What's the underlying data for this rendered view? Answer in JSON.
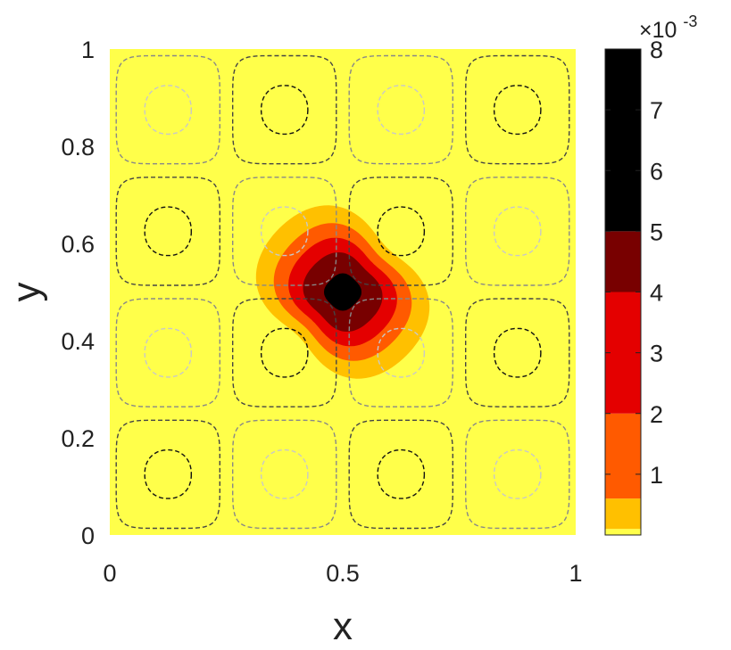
{
  "chart_data": {
    "type": "contour",
    "xlabel": "x",
    "ylabel": "y",
    "xlim": [
      0,
      1
    ],
    "ylim": [
      0,
      1
    ],
    "xticks": [
      0,
      0.5,
      1
    ],
    "xtick_labels": [
      "0",
      "0.5",
      "1"
    ],
    "yticks": [
      0,
      0.2,
      0.4,
      0.6,
      0.8,
      1
    ],
    "ytick_labels": [
      "0",
      "0.2",
      "0.4",
      "0.6",
      "0.8",
      "1"
    ],
    "background_color": "#ffff4a",
    "filled_blob": {
      "center": [
        0.5,
        0.5
      ],
      "peak": 0.008,
      "levels": [
        0.0001,
        0.0006,
        0.002,
        0.004,
        0.005
      ],
      "colors": [
        "#ffc000",
        "#ff5a00",
        "#e40000",
        "#780000",
        "#000000"
      ]
    },
    "dashed_contours": {
      "field": "sin(4*pi*x)*sin(4*pi*y)",
      "inner_cells_dark": [
        [
          0.375,
          0.875
        ],
        [
          0.875,
          0.875
        ],
        [
          0.125,
          0.625
        ],
        [
          0.625,
          0.625
        ],
        [
          0.375,
          0.375
        ],
        [
          0.875,
          0.375
        ],
        [
          0.125,
          0.125
        ],
        [
          0.625,
          0.125
        ]
      ],
      "inner_cells_light": [
        [
          0.125,
          0.875
        ],
        [
          0.625,
          0.875
        ],
        [
          0.375,
          0.625
        ],
        [
          0.875,
          0.625
        ],
        [
          0.125,
          0.375
        ],
        [
          0.625,
          0.375
        ],
        [
          0.375,
          0.125
        ],
        [
          0.875,
          0.125
        ]
      ],
      "dark_color": "#111111",
      "light_color": "#c8c8c8",
      "outer_dark_color": "#444444",
      "outer_light_color": "#888888"
    },
    "colorbar": {
      "ticks": [
        1,
        2,
        3,
        4,
        5,
        6,
        7,
        8
      ],
      "tick_labels": [
        "1",
        "2",
        "3",
        "4",
        "5",
        "6",
        "7",
        "8"
      ],
      "multiplier_base": "×10",
      "multiplier_exp": "-3",
      "segments": [
        {
          "from": 0,
          "to": 0.1,
          "color": "#ffff4a"
        },
        {
          "from": 0.1,
          "to": 0.6,
          "color": "#ffc000"
        },
        {
          "from": 0.6,
          "to": 2,
          "color": "#ff5a00"
        },
        {
          "from": 2,
          "to": 4,
          "color": "#e40000"
        },
        {
          "from": 4,
          "to": 5,
          "color": "#780000"
        },
        {
          "from": 5,
          "to": 8,
          "color": "#000000"
        }
      ]
    }
  }
}
